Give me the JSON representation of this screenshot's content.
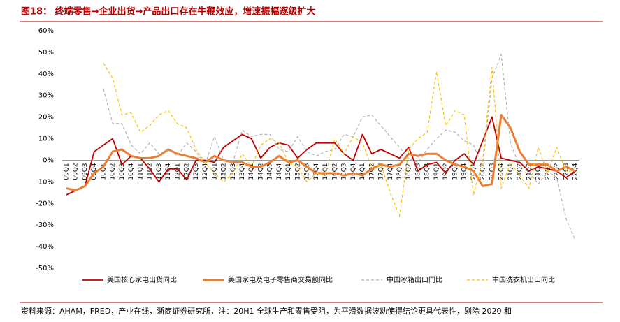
{
  "chart_data": {
    "type": "line",
    "title": "图18：  终端零售→企业出货→产品出口存在牛鞭效应，增速振幅逐级扩大",
    "source": "资料来源：AHAM，FRED，产业在线，浙商证券研究所，注：20H1 全球生产和零售受阻，为平滑数据波动使得结论更具代表性，剔除 2020 和",
    "categories": [
      "09Q1",
      "09Q2",
      "09Q3",
      "09Q4",
      "10Q1",
      "10Q2",
      "10Q3",
      "10Q4",
      "11Q1",
      "11Q2",
      "11Q3",
      "11Q4",
      "12Q1",
      "12Q2",
      "12Q3",
      "12Q4",
      "13Q1",
      "13Q2",
      "13Q3",
      "13Q4",
      "14Q1",
      "14Q2",
      "14Q3",
      "14Q4",
      "15Q1",
      "15Q2",
      "15Q3",
      "15Q4",
      "16Q1",
      "16Q2",
      "16Q3",
      "16Q4",
      "17Q1",
      "17Q2",
      "17Q3",
      "17Q4",
      "18Q1",
      "18Q2",
      "18Q3",
      "18Q4",
      "19Q1",
      "19Q2",
      "19Q3",
      "19Q4",
      "20Q1",
      "20Q2",
      "20Q3",
      "20Q4",
      "21Q1",
      "21Q2",
      "21Q3",
      "21Q4",
      "22Q1",
      "22Q2",
      "22Q3",
      "22Q4"
    ],
    "series": [
      {
        "name": "美国核心家电出货同比",
        "color": "#c00000",
        "dash": false,
        "width": 1.8,
        "values": [
          -16,
          -14,
          -12,
          4,
          7,
          10,
          -2,
          2,
          1,
          -4,
          -10,
          -4,
          -4,
          -9,
          0,
          0,
          -1,
          6,
          9,
          12,
          10,
          1,
          6,
          8,
          7,
          1,
          5,
          8,
          8,
          8,
          3,
          0,
          12,
          3,
          5,
          3,
          1,
          6,
          -5,
          -2,
          -1,
          -6,
          0,
          3,
          -2,
          9,
          20,
          1,
          0,
          -1,
          -5,
          -3,
          -4,
          -5,
          -8,
          -5
        ]
      },
      {
        "name": "美国家电及电子零售商交易额同比",
        "color": "#ed7d31",
        "dash": false,
        "width": 3,
        "values": [
          -13,
          -14,
          -12,
          -6,
          -3,
          4,
          5,
          2,
          1,
          1,
          2,
          5,
          3,
          2,
          1,
          -1,
          2,
          0,
          -1,
          -1,
          -3,
          -3,
          -1,
          2,
          -1,
          0,
          -3,
          -6,
          -6,
          -6,
          -7,
          -6,
          -7,
          -4,
          -2,
          -3,
          -2,
          3,
          2,
          3,
          3,
          0,
          -2,
          -3,
          -5,
          -12,
          -11,
          21,
          15,
          4,
          -2,
          -2,
          -2,
          -5,
          -3,
          -5
        ]
      },
      {
        "name": "中国冰箱出口同比",
        "color": "#b0b0b0",
        "dash": true,
        "width": 1.2,
        "values": [
          null,
          null,
          null,
          null,
          33,
          17,
          17,
          7,
          3,
          8,
          3,
          5,
          2,
          8,
          4,
          -2,
          11,
          0,
          -1,
          14,
          11,
          12,
          12,
          5,
          4,
          11,
          4,
          2,
          4,
          5,
          12,
          11,
          20,
          21,
          16,
          11,
          6,
          1,
          -1,
          5,
          10,
          14,
          13,
          9,
          7,
          -3,
          38,
          49,
          8,
          -3,
          -5,
          -11,
          -5,
          -8,
          -27,
          -37
        ]
      },
      {
        "name": "中国洗衣机出口同比",
        "color": "#ffc000",
        "dash": true,
        "width": 1.2,
        "values": [
          null,
          null,
          null,
          null,
          45,
          38,
          21,
          22,
          13,
          16,
          21,
          23,
          17,
          15,
          5,
          -1,
          -6,
          -10,
          -6,
          3,
          -3,
          7,
          10,
          8,
          -1,
          -3,
          -10,
          -6,
          -7,
          10,
          3,
          11,
          8,
          -3,
          -2,
          -15,
          -26,
          5,
          10,
          13,
          41,
          16,
          23,
          21,
          -16,
          0,
          43,
          -13,
          -1,
          -7,
          -13,
          6,
          -6,
          6,
          -5,
          -5
        ]
      }
    ],
    "ylim": [
      -50,
      60
    ],
    "yticks": [
      {
        "value": -50,
        "label": "-50%"
      },
      {
        "value": -40,
        "label": "-40%"
      },
      {
        "value": -30,
        "label": "-30%"
      },
      {
        "value": -20,
        "label": "-20%"
      },
      {
        "value": -10,
        "label": "-10%"
      },
      {
        "value": 0,
        "label": "0%"
      },
      {
        "value": 10,
        "label": "10%"
      },
      {
        "value": 20,
        "label": "20%"
      },
      {
        "value": 30,
        "label": "30%"
      },
      {
        "value": 40,
        "label": "40%"
      },
      {
        "value": 50,
        "label": "50%"
      },
      {
        "value": 60,
        "label": "60%"
      }
    ],
    "grid": false
  }
}
